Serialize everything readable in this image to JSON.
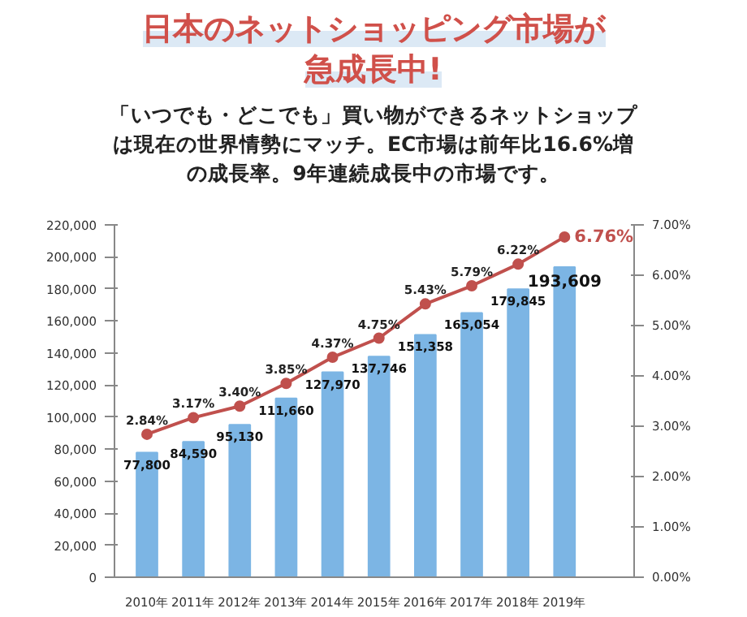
{
  "chart_data": {
    "type": "bar",
    "title": "日本のネットショッピング市場が急成長中!",
    "subtitle": "「いつでも・どこでも」買い物ができるネットショップは現在の世界情勢にマッチ。EC市場は前年比16.6%増の成長率。9年連続成長中の市場です。",
    "categories": [
      "2010年",
      "2011年",
      "2012年",
      "2013年",
      "2014年",
      "2015年",
      "2016年",
      "2017年",
      "2018年",
      "2019年"
    ],
    "series": [
      {
        "color": "#7cb5e4",
        "values": [
          77800,
          84590,
          95130,
          111660,
          127970,
          137746,
          151358,
          165054,
          179845,
          193609
        ],
        "value_labels": [
          "77,800",
          "84,590",
          "95,130",
          "111,660",
          "127,970",
          "137,746",
          "151,358",
          "165,054",
          "179,845",
          "193,609"
        ]
      },
      {
        "type": "line",
        "axis": "y2",
        "color": "#c0504d",
        "marker": "circle",
        "values": [
          2.84,
          3.17,
          3.4,
          3.85,
          4.37,
          4.75,
          5.43,
          5.79,
          6.22,
          6.76
        ],
        "value_labels": [
          "2.84%",
          "3.17%",
          "3.40%",
          "3.85%",
          "4.37%",
          "4.75%",
          "5.43%",
          "5.79%",
          "6.22%",
          "6.76%"
        ]
      }
    ],
    "ylim": [
      0,
      220000
    ],
    "yticks": [
      {
        "value": 0,
        "label": "0"
      },
      {
        "value": 20000,
        "label": "20,000"
      },
      {
        "value": 40000,
        "label": "40,000"
      },
      {
        "value": 60000,
        "label": "60,000"
      },
      {
        "value": 80000,
        "label": "80,000"
      },
      {
        "value": 100000,
        "label": "100,000"
      },
      {
        "value": 120000,
        "label": "120,000"
      },
      {
        "value": 140000,
        "label": "140,000"
      },
      {
        "value": 160000,
        "label": "160,000"
      },
      {
        "value": 180000,
        "label": "180,000"
      },
      {
        "value": 200000,
        "label": "200,000"
      },
      {
        "value": 220000,
        "label": "220,000"
      }
    ],
    "y2lim": [
      0,
      7
    ],
    "y2ticks": [
      {
        "value": 0,
        "label": "0.00%"
      },
      {
        "value": 1,
        "label": "1.00%"
      },
      {
        "value": 2,
        "label": "2.00%"
      },
      {
        "value": 3,
        "label": "3.00%"
      },
      {
        "value": 4,
        "label": "4.00%"
      },
      {
        "value": 5,
        "label": "5.00%"
      },
      {
        "value": 6,
        "label": "6.00%"
      },
      {
        "value": 7,
        "label": "7.00%"
      }
    ],
    "grid": false
  }
}
